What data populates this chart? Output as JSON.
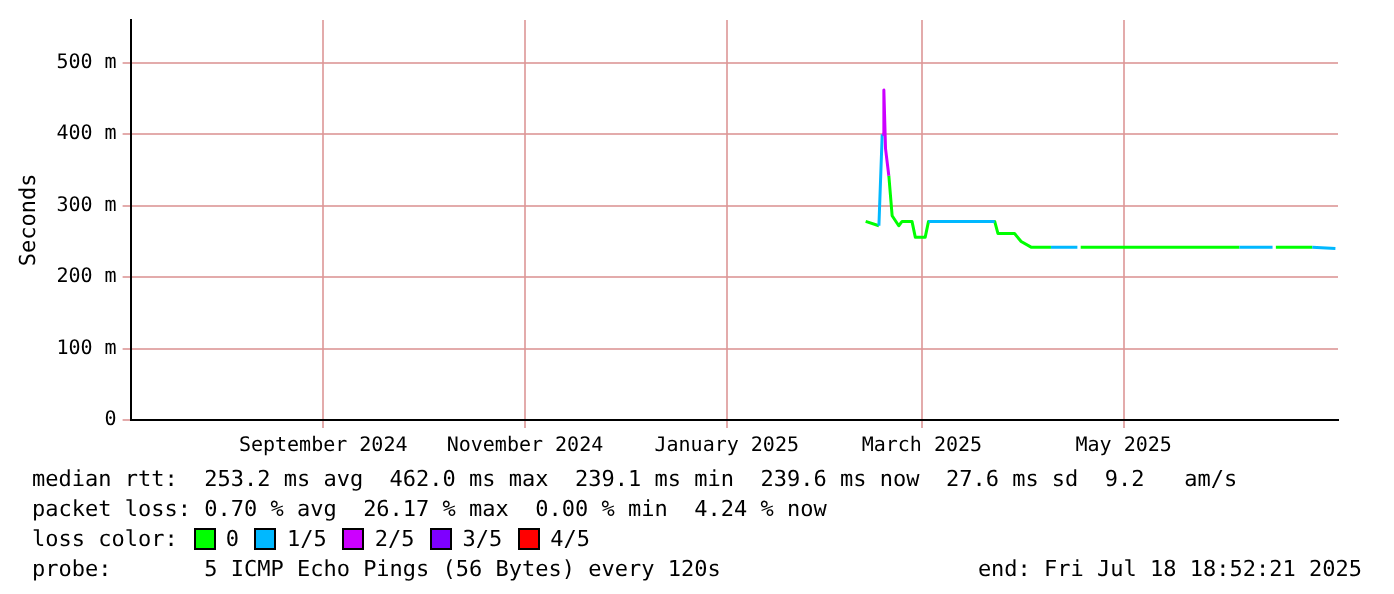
{
  "chart_data": {
    "type": "line",
    "ylabel": "Seconds",
    "legend_title": "loss color:",
    "legend": "bottom",
    "grid": true,
    "marker": "none",
    "line_style": "solid",
    "x": [
      "2025-02-26",
      "2025-03-02",
      "2025-03-03",
      "2025-03-03T12:00",
      "2025-03-04",
      "2025-03-05",
      "2025-03-06",
      "2025-03-08",
      "2025-03-09",
      "2025-03-12",
      "2025-03-13",
      "2025-03-16",
      "2025-03-17",
      "2025-04-06",
      "2025-04-07",
      "2025-04-12",
      "2025-04-14",
      "2025-04-17",
      "2025-04-23",
      "2025-05-01",
      "2025-05-02",
      "2025-06-19",
      "2025-06-29",
      "2025-06-30",
      "2025-07-11",
      "2025-07-18"
    ],
    "xlim": [
      "2024-07-18T18:52",
      "2025-07-18T18:52"
    ],
    "xticks": [
      {
        "value": "2024-09-15",
        "label": "September 2024"
      },
      {
        "value": "2024-11-15",
        "label": "November 2024"
      },
      {
        "value": "2025-01-15",
        "label": "January 2025"
      },
      {
        "value": "2025-03-15",
        "label": "March 2025"
      },
      {
        "value": "2025-05-15",
        "label": "May 2025"
      }
    ],
    "ylim": [
      0,
      560
    ],
    "yticks": [
      0,
      {
        "value": 100,
        "label": "100 m"
      },
      {
        "value": 200,
        "label": "200 m"
      },
      {
        "value": 300,
        "label": "300 m"
      },
      {
        "value": 400,
        "label": "400 m"
      },
      {
        "value": 500,
        "label": "500 m"
      }
    ],
    "series": [
      {
        "name": "0",
        "color": "#00ff00",
        "values": [
          278,
          272,
          null,
          null,
          null,
          342,
          286,
          272,
          278,
          278,
          256,
          256,
          278,
          278,
          261,
          261,
          250,
          242,
          242,
          null,
          242,
          242,
          null,
          242,
          242,
          null
        ]
      },
      {
        "name": "1/5",
        "color": "#00b8ff",
        "values": [
          null,
          272,
          400,
          null,
          null,
          null,
          null,
          null,
          null,
          null,
          null,
          null,
          278,
          278,
          null,
          null,
          null,
          null,
          242,
          242,
          null,
          242,
          242,
          null,
          242,
          240
        ]
      },
      {
        "name": "2/5",
        "color": "#cc00ff",
        "values": [
          null,
          null,
          400,
          462,
          380,
          342,
          null,
          null,
          null,
          null,
          null,
          null,
          null,
          null,
          null,
          null,
          null,
          null,
          null,
          null,
          null,
          null,
          null,
          null,
          null,
          null
        ]
      },
      {
        "name": "3/5",
        "color": "#7e00ff",
        "values": [
          null,
          null,
          null,
          null,
          null,
          null,
          null,
          null,
          null,
          null,
          null,
          null,
          null,
          null,
          null,
          null,
          null,
          null,
          null,
          null,
          null,
          null,
          null,
          null,
          null,
          null
        ]
      },
      {
        "name": "4/5",
        "color": "#ff0000",
        "values": [
          null,
          null,
          null,
          null,
          null,
          null,
          null,
          null,
          null,
          null,
          null,
          null,
          null,
          null,
          null,
          null,
          null,
          null,
          null,
          null,
          null,
          null,
          null,
          null,
          null,
          null
        ]
      }
    ],
    "annotations": [
      "median rtt:  253.2 ms avg  462.0 ms max  239.1 ms min  239.6 ms now  27.6 ms sd  9.2   am/s",
      "packet loss: 0.70 % avg  26.17 % max  0.00 % min  4.24 % now",
      "probe:       5 ICMP Echo Pings (56 Bytes) every 120s",
      "end: Fri Jul 18 18:52:21 2025"
    ]
  }
}
